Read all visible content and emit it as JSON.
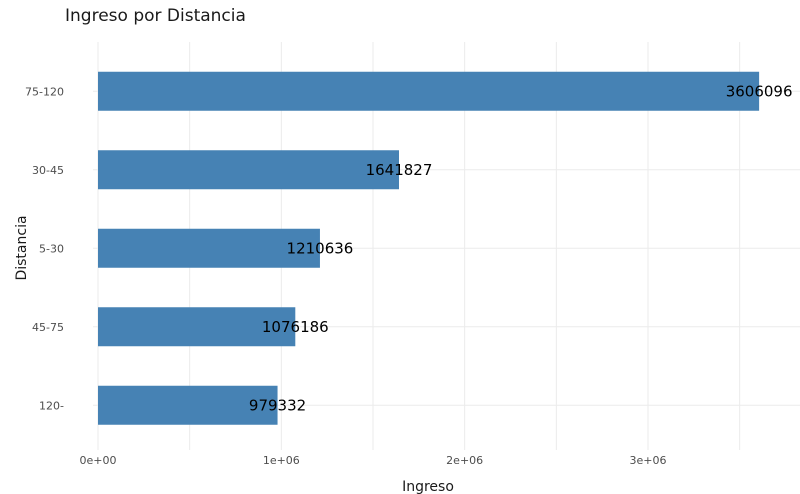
{
  "chart_data": {
    "type": "bar",
    "orientation": "horizontal",
    "title": "Ingreso por Distancia",
    "xlabel": "Ingreso",
    "ylabel": "Distancia",
    "categories": [
      "75-120",
      "30-45",
      "5-30",
      "45-75",
      "120-"
    ],
    "values": [
      3606096,
      1641827,
      1210636,
      1076186,
      979332
    ],
    "xlim": [
      0,
      3800000
    ],
    "x_ticks": [
      0,
      1000000,
      2000000,
      3000000
    ],
    "x_tick_labels": [
      "0e+00",
      "1e+06",
      "2e+06",
      "3e+06"
    ],
    "bar_color": "#4682B4",
    "grid": true,
    "legend": "none"
  }
}
